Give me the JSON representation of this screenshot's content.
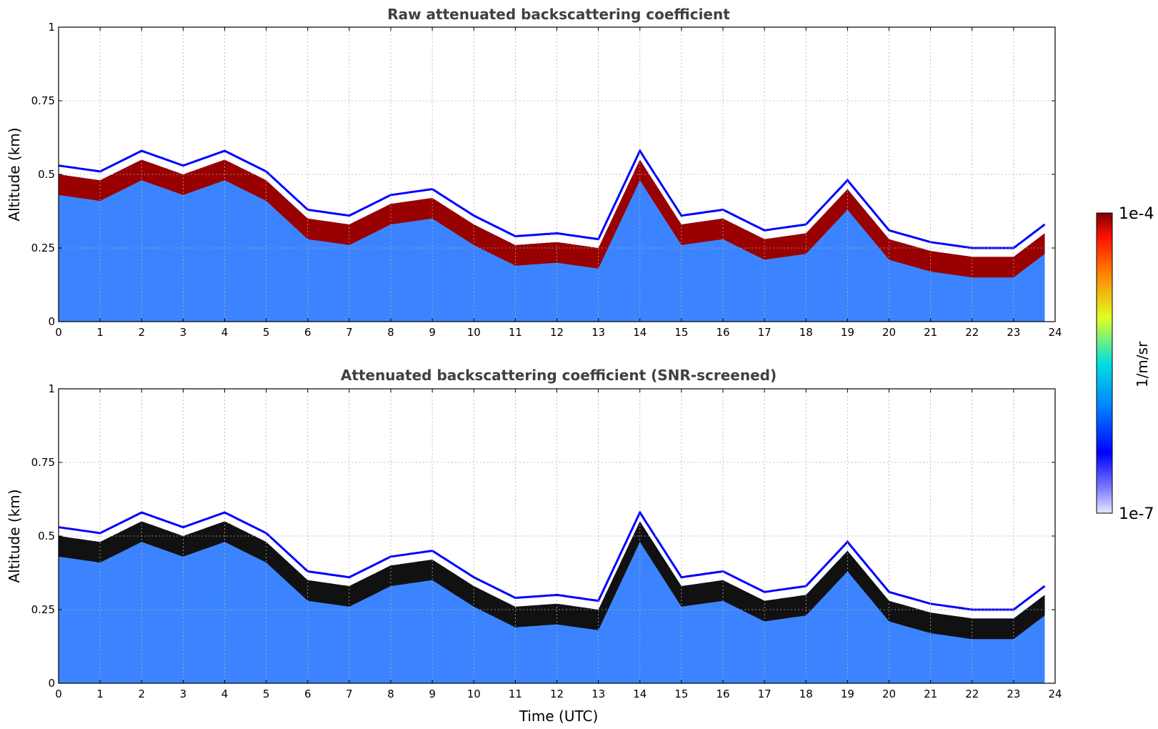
{
  "chart_data": [
    {
      "type": "heatmap",
      "title": "Raw attenuated backscattering coefficient",
      "xlabel": "",
      "ylabel": "Altitude (km)",
      "xlim": [
        0,
        24
      ],
      "ylim": [
        0,
        1
      ],
      "xticks": [
        "0",
        "1",
        "2",
        "3",
        "4",
        "5",
        "6",
        "7",
        "8",
        "9",
        "10",
        "11",
        "12",
        "13",
        "14",
        "15",
        "16",
        "17",
        "18",
        "19",
        "20",
        "21",
        "22",
        "23",
        "24"
      ],
      "yticks": [
        "0",
        "0.25",
        "0.5",
        "0.75",
        "1"
      ],
      "grid": true,
      "colorscale": "jet",
      "clim": [
        "1e-7",
        "1e-4"
      ],
      "layer_top_km": [
        [
          0,
          0.5
        ],
        [
          1,
          0.48
        ],
        [
          2,
          0.55
        ],
        [
          3,
          0.5
        ],
        [
          4,
          0.55
        ],
        [
          5,
          0.48
        ],
        [
          6,
          0.35
        ],
        [
          7,
          0.33
        ],
        [
          8,
          0.4
        ],
        [
          9,
          0.42
        ],
        [
          10,
          0.33
        ],
        [
          11,
          0.26
        ],
        [
          12,
          0.27
        ],
        [
          13,
          0.25
        ],
        [
          14,
          0.55
        ],
        [
          15,
          0.33
        ],
        [
          16,
          0.35
        ],
        [
          17,
          0.28
        ],
        [
          18,
          0.3
        ],
        [
          19,
          0.45
        ],
        [
          20,
          0.28
        ],
        [
          21,
          0.24
        ],
        [
          22,
          0.22
        ],
        [
          23,
          0.22
        ],
        [
          23.75,
          0.3
        ]
      ]
    },
    {
      "type": "heatmap",
      "title": "Attenuated backscattering coefficient (SNR-screened)",
      "xlabel": "Time (UTC)",
      "ylabel": "Altitude (km)",
      "xlim": [
        0,
        24
      ],
      "ylim": [
        0,
        1
      ],
      "xticks": [
        "0",
        "1",
        "2",
        "3",
        "4",
        "5",
        "6",
        "7",
        "8",
        "9",
        "10",
        "11",
        "12",
        "13",
        "14",
        "15",
        "16",
        "17",
        "18",
        "19",
        "20",
        "21",
        "22",
        "23",
        "24"
      ],
      "yticks": [
        "0",
        "0.25",
        "0.5",
        "0.75",
        "1"
      ],
      "grid": true,
      "colorscale": "jet",
      "clim": [
        "1e-7",
        "1e-4"
      ],
      "layer_top_km": [
        [
          0,
          0.5
        ],
        [
          1,
          0.48
        ],
        [
          2,
          0.55
        ],
        [
          3,
          0.5
        ],
        [
          4,
          0.55
        ],
        [
          5,
          0.48
        ],
        [
          6,
          0.35
        ],
        [
          7,
          0.33
        ],
        [
          8,
          0.4
        ],
        [
          9,
          0.42
        ],
        [
          10,
          0.33
        ],
        [
          11,
          0.26
        ],
        [
          12,
          0.27
        ],
        [
          13,
          0.25
        ],
        [
          14,
          0.55
        ],
        [
          15,
          0.33
        ],
        [
          16,
          0.35
        ],
        [
          17,
          0.28
        ],
        [
          18,
          0.3
        ],
        [
          19,
          0.45
        ],
        [
          20,
          0.28
        ],
        [
          21,
          0.24
        ],
        [
          22,
          0.22
        ],
        [
          23,
          0.22
        ],
        [
          23.75,
          0.3
        ]
      ]
    }
  ],
  "colorbar": {
    "label": "1/m/sr",
    "max_label": "1e-4",
    "min_label": "1e-7"
  }
}
